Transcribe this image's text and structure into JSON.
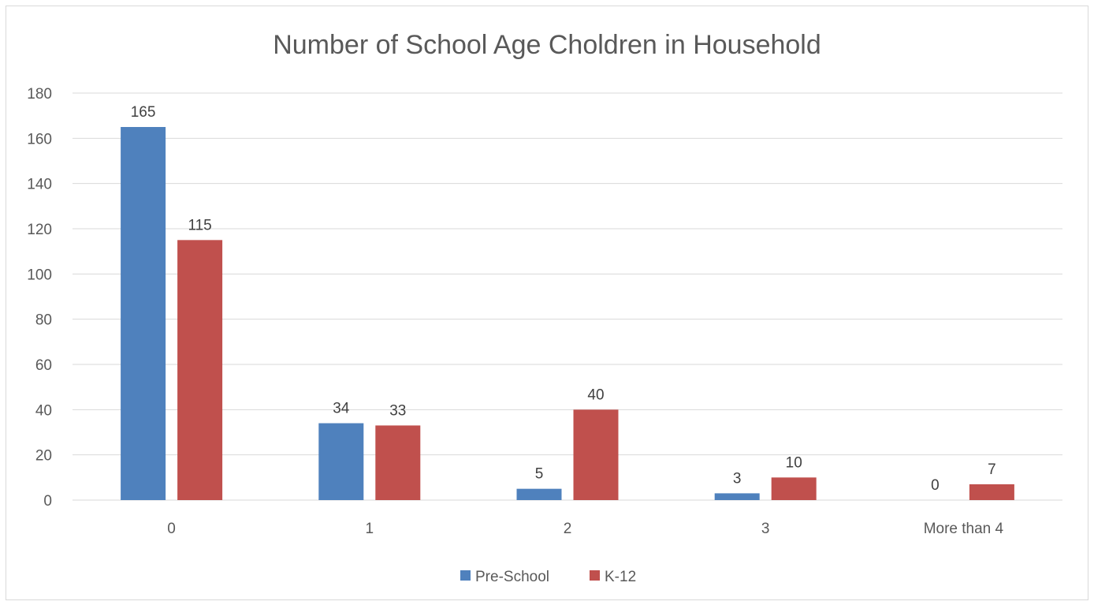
{
  "chart_data": {
    "type": "bar",
    "title": "Number of School Age Choldren in Household",
    "xlabel": "",
    "ylabel": "",
    "categories": [
      "0",
      "1",
      "2",
      "3",
      "More than 4"
    ],
    "series": [
      {
        "name": "Pre-School",
        "values": [
          165,
          34,
          5,
          3,
          0
        ]
      },
      {
        "name": "K-12",
        "values": [
          115,
          33,
          40,
          10,
          7
        ]
      }
    ],
    "ylim": [
      0,
      180
    ],
    "yticks": [
      "0",
      "20",
      "40",
      "60",
      "80",
      "100",
      "120",
      "140",
      "160",
      "180"
    ],
    "grid": true,
    "legend": "bottom",
    "data_labels": true,
    "colors": {
      "Pre-School": "#4f81bd",
      "K-12": "#c0504d",
      "grid": "#d9d9d9"
    }
  }
}
